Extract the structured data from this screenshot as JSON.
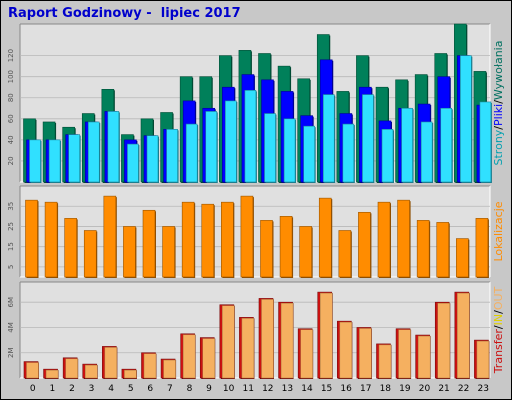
{
  "title": "Raport Godzinowy -  lipiec 2017",
  "colors": {
    "background": "#c8c8c8",
    "plot_area": "#e0e0e0",
    "title": "#0000cc",
    "strony": "#00805a",
    "pliki": "#0000ff",
    "wywolania": "#30e0ff",
    "lokalizacje": "#ff8c00",
    "transfer": "#cc1111",
    "in_out": "#f5b060"
  },
  "legend": {
    "panel1": [
      {
        "text": "Strony",
        "color": "#00a0b0"
      },
      {
        "text": "/",
        "color": "#000000"
      },
      {
        "text": "Pliki",
        "color": "#0000ff"
      },
      {
        "text": "/",
        "color": "#000000"
      },
      {
        "text": "Wywołania",
        "color": "#007060"
      }
    ],
    "panel2": [
      {
        "text": "Lokalizacje",
        "color": "#ff8c00"
      }
    ],
    "panel3": [
      {
        "text": "Transfer",
        "color": "#cc1111"
      },
      {
        "text": "/",
        "color": "#000000"
      },
      {
        "text": "IN",
        "color": "#e0d000"
      },
      {
        "text": "/",
        "color": "#000000"
      },
      {
        "text": "OUT",
        "color": "#f5b060"
      }
    ]
  },
  "chart_data": [
    {
      "type": "bar",
      "categories": [
        "0",
        "1",
        "2",
        "3",
        "4",
        "5",
        "6",
        "7",
        "8",
        "9",
        "10",
        "11",
        "12",
        "13",
        "14",
        "15",
        "16",
        "17",
        "18",
        "19",
        "20",
        "21",
        "22",
        "23"
      ],
      "ylim": [
        0,
        150
      ],
      "yticks": [
        20,
        40,
        60,
        80,
        100,
        120
      ],
      "series": [
        {
          "name": "Wywołania",
          "values": [
            60,
            57,
            52,
            65,
            88,
            45,
            60,
            66,
            100,
            100,
            120,
            125,
            122,
            110,
            98,
            140,
            86,
            120,
            90,
            97,
            102,
            122,
            150,
            105
          ]
        },
        {
          "name": "Pliki",
          "values": [
            40,
            40,
            45,
            57,
            67,
            40,
            44,
            50,
            77,
            70,
            90,
            102,
            97,
            86,
            63,
            116,
            65,
            90,
            58,
            70,
            74,
            100,
            120,
            73
          ]
        },
        {
          "name": "Strony",
          "values": [
            40,
            40,
            45,
            57,
            67,
            36,
            44,
            50,
            55,
            67,
            77,
            87,
            65,
            60,
            53,
            83,
            55,
            83,
            50,
            70,
            57,
            70,
            120,
            76
          ]
        }
      ]
    },
    {
      "type": "bar",
      "categories": [
        "0",
        "1",
        "2",
        "3",
        "4",
        "5",
        "6",
        "7",
        "8",
        "9",
        "10",
        "11",
        "12",
        "13",
        "14",
        "15",
        "16",
        "17",
        "18",
        "19",
        "20",
        "21",
        "22",
        "23"
      ],
      "ylim": [
        0,
        45
      ],
      "yticks": [
        5,
        15,
        25,
        35
      ],
      "series": [
        {
          "name": "Lokalizacje",
          "values": [
            38,
            37,
            29,
            23,
            40,
            25,
            33,
            25,
            37,
            36,
            37,
            40,
            28,
            30,
            25,
            39,
            23,
            32,
            37,
            38,
            28,
            27,
            19,
            29
          ]
        }
      ]
    },
    {
      "type": "bar",
      "categories": [
        "0",
        "1",
        "2",
        "3",
        "4",
        "5",
        "6",
        "7",
        "8",
        "9",
        "10",
        "11",
        "12",
        "13",
        "14",
        "15",
        "16",
        "17",
        "18",
        "19",
        "20",
        "21",
        "22",
        "23"
      ],
      "ylim": [
        0,
        7600000
      ],
      "yticks": [
        2000000,
        4000000,
        6000000
      ],
      "ytick_labels": [
        "2M",
        "4M",
        "6M"
      ],
      "series": [
        {
          "name": "Transfer",
          "values": [
            1300000,
            700000,
            1600000,
            1100000,
            2500000,
            700000,
            2000000,
            1500000,
            3500000,
            3200000,
            5800000,
            4800000,
            6300000,
            6000000,
            3900000,
            6800000,
            4500000,
            4000000,
            2700000,
            3900000,
            3400000,
            6000000,
            6800000,
            3000000
          ]
        }
      ]
    }
  ]
}
